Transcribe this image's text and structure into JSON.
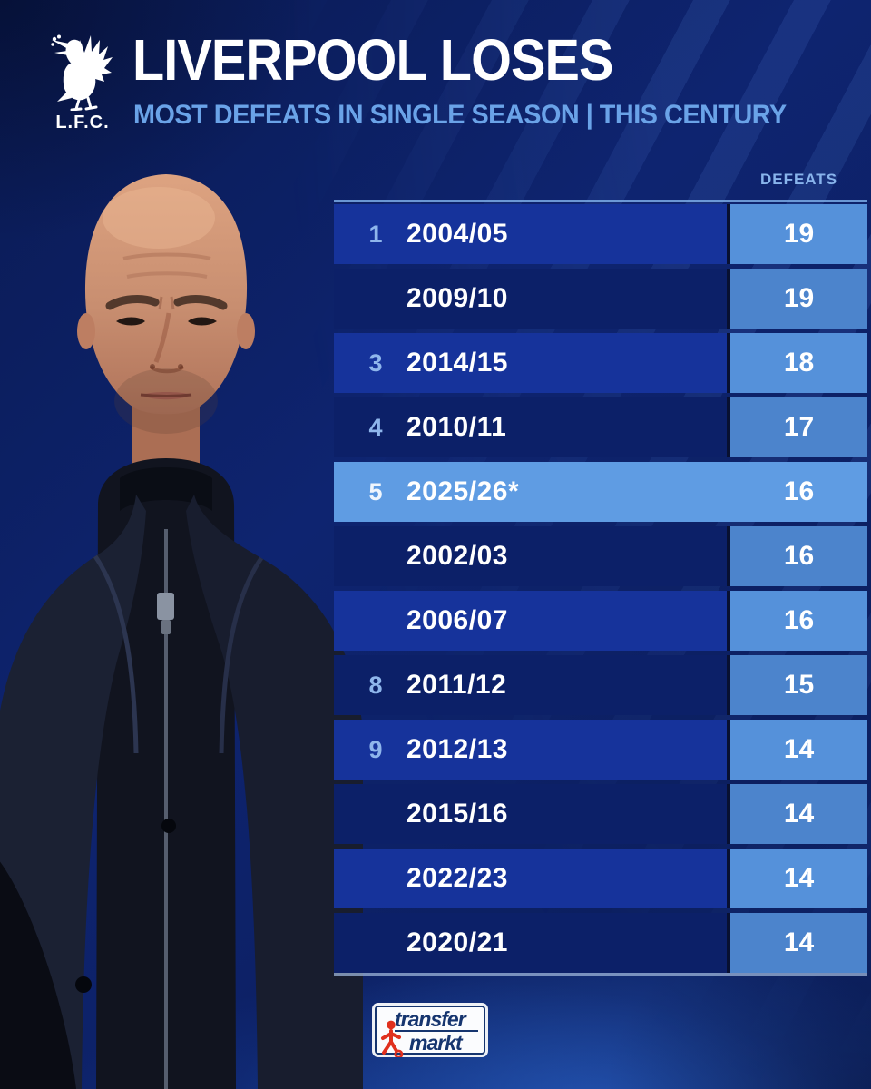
{
  "header": {
    "crest_label": "L.F.C.",
    "title": "LIVERPOOL LOSES",
    "subtitle": "MOST DEFEATS IN SINGLE SEASON | THIS CENTURY"
  },
  "table": {
    "defeats_header": "DEFEATS"
  },
  "chart_data": {
    "type": "table",
    "title": "LIVERPOOL LOSES",
    "subtitle": "MOST DEFEATS IN SINGLE SEASON | THIS CENTURY",
    "columns": [
      "Rank",
      "Season",
      "Defeats"
    ],
    "rows": [
      {
        "rank": "1",
        "season": "2004/05",
        "defeats": "19",
        "highlight": false
      },
      {
        "rank": "",
        "season": "2009/10",
        "defeats": "19",
        "highlight": false
      },
      {
        "rank": "3",
        "season": "2014/15",
        "defeats": "18",
        "highlight": false
      },
      {
        "rank": "4",
        "season": "2010/11",
        "defeats": "17",
        "highlight": false
      },
      {
        "rank": "5",
        "season": "2025/26*",
        "defeats": "16",
        "highlight": true
      },
      {
        "rank": "",
        "season": "2002/03",
        "defeats": "16",
        "highlight": false
      },
      {
        "rank": "",
        "season": "2006/07",
        "defeats": "16",
        "highlight": false
      },
      {
        "rank": "8",
        "season": "2011/12",
        "defeats": "15",
        "highlight": false
      },
      {
        "rank": "9",
        "season": "2012/13",
        "defeats": "14",
        "highlight": false
      },
      {
        "rank": "",
        "season": "2015/16",
        "defeats": "14",
        "highlight": false
      },
      {
        "rank": "",
        "season": "2022/23",
        "defeats": "14",
        "highlight": false
      },
      {
        "rank": "",
        "season": "2020/21",
        "defeats": "14",
        "highlight": false
      }
    ]
  },
  "footer": {
    "brand_top": "transfer",
    "brand_bottom": "markt"
  },
  "colors": {
    "background": "#0c2067",
    "row_light": "#16339b",
    "row_dark": "#0c2068",
    "row_highlight": "#5f9ce3",
    "cell_light": "#5591da",
    "cell_dark": "#4c84cc",
    "divider": "#081031",
    "title": "#ffffff",
    "subtitle": "#6aa3e8",
    "defeats_header": "#88b4ec",
    "rank": "#8fb6ec",
    "topline": "#7babe6",
    "tm_blue": "#16356f",
    "tm_red": "#e0301e"
  }
}
